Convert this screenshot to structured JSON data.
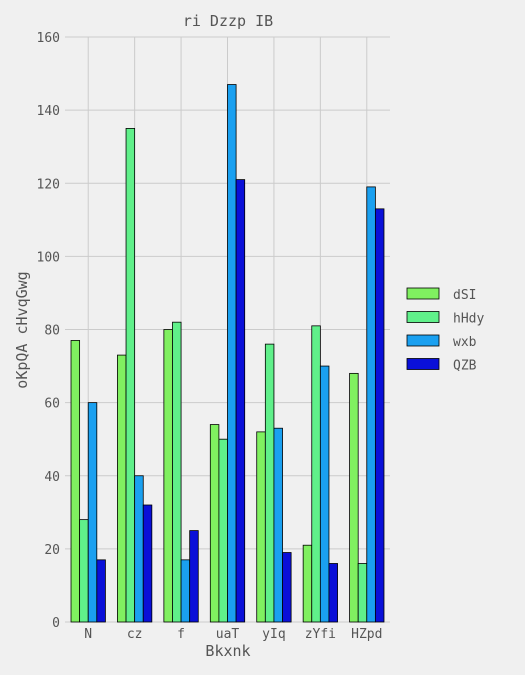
{
  "chart_data": {
    "type": "bar",
    "title": "ri Dzzp IB",
    "xlabel": "Bkxnk",
    "ylabel": "oKpQA cHvqGwg",
    "ylim": [
      0,
      160
    ],
    "yticks": [
      0,
      20,
      40,
      60,
      80,
      100,
      120,
      140,
      160
    ],
    "grid": true,
    "legend_position": "right",
    "categories": [
      "N",
      "cz",
      "f",
      "uaT",
      "yIq",
      "zYfi",
      "HZpd"
    ],
    "series": [
      {
        "name": "dSI",
        "color": "#80f060",
        "values": [
          77,
          73,
          80,
          54,
          52,
          21,
          68
        ]
      },
      {
        "name": "hHdy",
        "color": "#60f08a",
        "values": [
          28,
          135,
          82,
          50,
          76,
          81,
          16
        ]
      },
      {
        "name": "wxb",
        "color": "#1aa0f0",
        "values": [
          60,
          40,
          17,
          147,
          53,
          70,
          119
        ]
      },
      {
        "name": "QZB",
        "color": "#0a10d8",
        "values": [
          17,
          32,
          25,
          121,
          19,
          16,
          113
        ]
      }
    ]
  }
}
